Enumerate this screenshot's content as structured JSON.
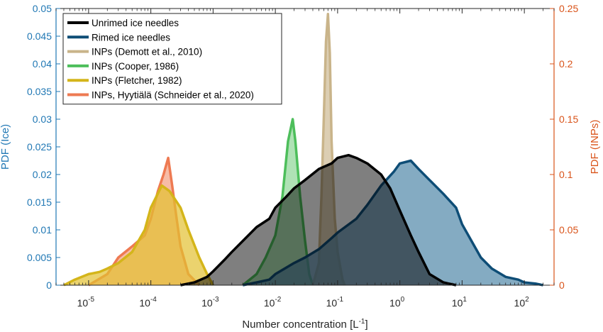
{
  "chart_data": {
    "type": "area",
    "xlabel_base": "Number concentration [L",
    "xlabel_sup": "-1",
    "xlabel_close": "]",
    "ylabel_left": "PDF (Ice)",
    "ylabel_right": "PDF (INPs)",
    "x_scale": "log",
    "xlim": [
      3e-06,
      300
    ],
    "ylim_left": [
      0,
      0.05
    ],
    "ylim_right": [
      0,
      0.25
    ],
    "x_ticks": [
      {
        "value": 1e-05,
        "base": "10",
        "exp": "-5"
      },
      {
        "value": 0.0001,
        "base": "10",
        "exp": "-4"
      },
      {
        "value": 0.001,
        "base": "10",
        "exp": "-3"
      },
      {
        "value": 0.01,
        "base": "10",
        "exp": "-2"
      },
      {
        "value": 0.1,
        "base": "10",
        "exp": "-1"
      },
      {
        "value": 1,
        "base": "10",
        "exp": "0"
      },
      {
        "value": 10,
        "base": "10",
        "exp": "1"
      },
      {
        "value": 100,
        "base": "10",
        "exp": "2"
      }
    ],
    "y_ticks_left": [
      "0",
      "0.005",
      "0.01",
      "0.015",
      "0.02",
      "0.025",
      "0.03",
      "0.035",
      "0.04",
      "0.045",
      "0.05"
    ],
    "y_ticks_right": [
      "0",
      "0.05",
      "0.1",
      "0.15",
      "0.2",
      "0.25"
    ],
    "grid": false,
    "legend_position": "top-left",
    "colors": {
      "left_axis": "#1f77b4",
      "right_axis": "#d95319"
    },
    "series": [
      {
        "name": "Unrimed ice needles",
        "axis": "left",
        "stroke": "#000000",
        "fill": "#000000",
        "fill_opacity": 0.5,
        "x": [
          0.0003,
          0.0005,
          0.0008,
          0.001,
          0.0015,
          0.002,
          0.003,
          0.005,
          0.008,
          0.01,
          0.015,
          0.02,
          0.03,
          0.05,
          0.08,
          0.1,
          0.15,
          0.2,
          0.3,
          0.5,
          0.7,
          1,
          1.5,
          2,
          3,
          5,
          8
        ],
        "y": [
          0,
          0.0005,
          0.0015,
          0.0025,
          0.0045,
          0.006,
          0.008,
          0.0105,
          0.012,
          0.014,
          0.016,
          0.0175,
          0.019,
          0.021,
          0.022,
          0.023,
          0.0235,
          0.023,
          0.022,
          0.02,
          0.0175,
          0.0135,
          0.009,
          0.006,
          0.002,
          0.0005,
          0
        ]
      },
      {
        "name": "Rimed ice needles",
        "axis": "left",
        "stroke": "#0e4d76",
        "fill": "#5b8fae",
        "fill_opacity": 0.75,
        "x": [
          0.003,
          0.005,
          0.008,
          0.01,
          0.02,
          0.03,
          0.05,
          0.08,
          0.1,
          0.2,
          0.3,
          0.5,
          0.8,
          1,
          1.5,
          2,
          3,
          5,
          8,
          10,
          15,
          20,
          30,
          50,
          80,
          100,
          150,
          200
        ],
        "y": [
          0,
          0.0005,
          0.001,
          0.002,
          0.004,
          0.005,
          0.0065,
          0.0085,
          0.0095,
          0.012,
          0.0145,
          0.018,
          0.0205,
          0.022,
          0.0225,
          0.021,
          0.019,
          0.0165,
          0.014,
          0.011,
          0.0075,
          0.005,
          0.003,
          0.0015,
          0.001,
          0.0005,
          0.0003,
          0
        ]
      },
      {
        "name": "INPs (Demott et al., 2010)",
        "axis": "right",
        "stroke": "#c9b48a",
        "fill": "#c9b48a",
        "fill_opacity": 0.65,
        "x": [
          0.04,
          0.05,
          0.055,
          0.06,
          0.065,
          0.07,
          0.075,
          0.08,
          0.09,
          0.1,
          0.12,
          0.13
        ],
        "y": [
          0,
          0.02,
          0.08,
          0.15,
          0.22,
          0.245,
          0.21,
          0.13,
          0.06,
          0.03,
          0.005,
          0
        ]
      },
      {
        "name": "INPs (Cooper, 1986)",
        "axis": "right",
        "stroke": "#4dbe5b",
        "fill": "#4dbe5b",
        "fill_opacity": 0.45,
        "x": [
          0.003,
          0.005,
          0.007,
          0.01,
          0.013,
          0.016,
          0.019,
          0.021,
          0.025,
          0.03,
          0.035,
          0.04
        ],
        "y": [
          0,
          0.01,
          0.025,
          0.045,
          0.08,
          0.13,
          0.15,
          0.13,
          0.08,
          0.04,
          0.01,
          0
        ]
      },
      {
        "name": "INPs (Fletcher, 1982)",
        "axis": "right",
        "stroke": "#d4b51a",
        "fill": "#e2c030",
        "fill_opacity": 0.7,
        "x": [
          4e-06,
          6e-06,
          1e-05,
          1.5e-05,
          2e-05,
          3e-05,
          5e-05,
          8e-05,
          0.0001,
          0.00015,
          0.0002,
          0.0003,
          0.0004,
          0.0006,
          0.0008,
          0.001
        ],
        "y": [
          0,
          0.005,
          0.01,
          0.012,
          0.015,
          0.02,
          0.03,
          0.05,
          0.07,
          0.09,
          0.085,
          0.07,
          0.05,
          0.025,
          0.01,
          0
        ]
      },
      {
        "name": "INPs, Hyytiälä (Schneider et al., 2020)",
        "axis": "right",
        "stroke": "#ee7a52",
        "fill": "#f4a080",
        "fill_opacity": 0.7,
        "x": [
          1e-05,
          2e-05,
          3e-05,
          5e-05,
          8e-05,
          0.0001,
          0.00013,
          0.00016,
          0.00019,
          0.00022,
          0.00026,
          0.0003,
          0.0004,
          0.0006
        ],
        "y": [
          0,
          0.01,
          0.025,
          0.035,
          0.045,
          0.06,
          0.085,
          0.1,
          0.115,
          0.09,
          0.06,
          0.035,
          0.01,
          0
        ]
      }
    ]
  }
}
